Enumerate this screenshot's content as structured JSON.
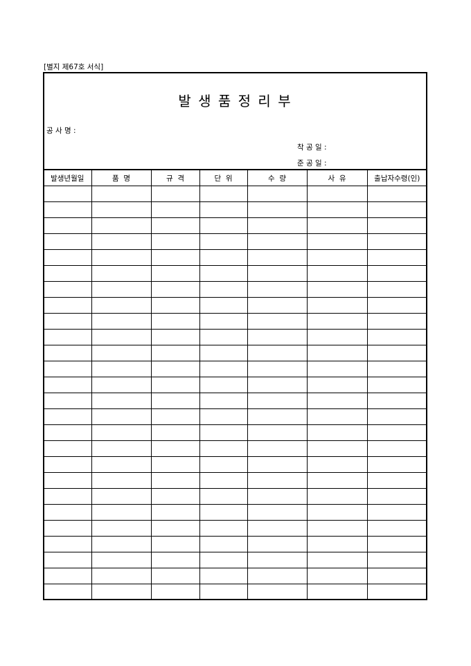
{
  "form_label": "[별지 제67호 서식]",
  "title": "발 생 품 정 리 부",
  "fields": {
    "project_name": "공 사 명 :",
    "start_date": "착 공 일 :",
    "end_date": "준 공 일 :"
  },
  "table": {
    "headers": [
      "발생년월일",
      "품  명",
      "규  격",
      "단  위",
      "수  량",
      "사  유",
      "출납자수령(인)"
    ]
  }
}
